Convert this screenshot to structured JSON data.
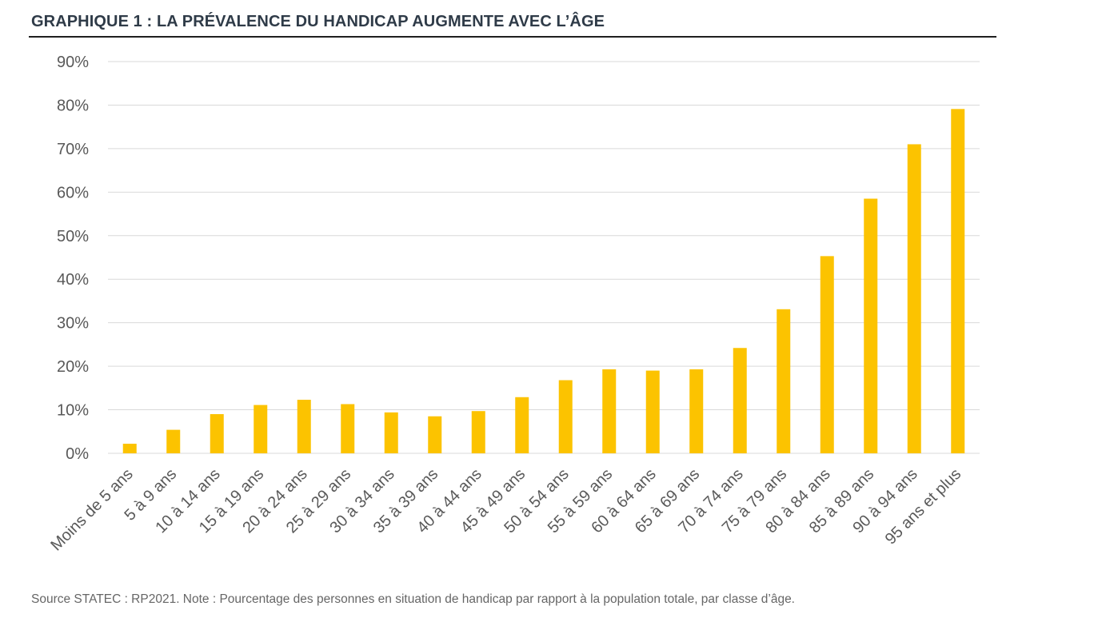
{
  "title": "GRAPHIQUE 1 : LA PRÉVALENCE DU HANDICAP AUGMENTE AVEC L’ÂGE",
  "source": "Source STATEC : RP2021. Note : Pourcentage des personnes en situation de handicap par rapport à la population totale, par classe d’âge.",
  "colors": {
    "bar": "#FCC300",
    "grid": "#d9d9d9",
    "axis_text": "#595959"
  },
  "chart_data": {
    "type": "bar",
    "categories": [
      "Moins de 5 ans",
      "5 à 9 ans",
      "10 à 14 ans",
      "15 à 19 ans",
      "20 à 24 ans",
      "25 à 29 ans",
      "30 à 34 ans",
      "35 à 39 ans",
      "40 à 44 ans",
      "45 à 49 ans",
      "50 à 54 ans",
      "55 à 59 ans",
      "60 à 64 ans",
      "65 à 69 ans",
      "70 à 74 ans",
      "75 à 79 ans",
      "80 à 84 ans",
      "85 à 89 ans",
      "90 à 94 ans",
      "95 ans et plus"
    ],
    "values": [
      2.2,
      5.4,
      9.0,
      11.1,
      12.3,
      11.3,
      9.4,
      8.5,
      9.7,
      12.9,
      16.8,
      19.3,
      19.0,
      19.3,
      24.2,
      33.1,
      45.3,
      58.5,
      71.0,
      79.1
    ],
    "ylim": [
      0,
      90
    ],
    "yticks": [
      "0%",
      "10%",
      "20%",
      "30%",
      "40%",
      "50%",
      "60%",
      "70%",
      "80%",
      "90%"
    ],
    "grid": true,
    "legend": "none"
  }
}
